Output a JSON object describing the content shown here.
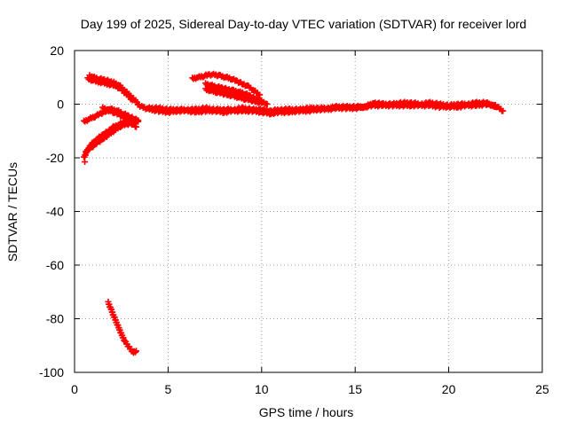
{
  "chart_data": {
    "type": "scatter",
    "title": "Day 199 of 2025, Sidereal Day-to-day VTEC variation (SDTVAR) for receiver lord",
    "xlabel": "GPS time / hours",
    "ylabel": "SDTVAR / TECUs",
    "xlim": [
      0,
      25
    ],
    "ylim": [
      -100,
      20
    ],
    "xticks": [
      0,
      5,
      10,
      15,
      20,
      25
    ],
    "yticks": [
      -100,
      -80,
      -60,
      -40,
      -20,
      0,
      20
    ],
    "xtick_labels": [
      "0",
      "5",
      "10",
      "15",
      "20",
      "25"
    ],
    "ytick_labels": [
      "-100",
      "-80",
      "-60",
      "-40",
      "-20",
      "0",
      "20"
    ],
    "grid": true,
    "marker": "plus",
    "color": "#ff0000",
    "series": [
      {
        "name": "trace-upper-left",
        "x": [
          0.8,
          1.0,
          1.3,
          1.6,
          1.9,
          2.1,
          2.4,
          2.7,
          3.0,
          3.3,
          3.5
        ],
        "y": [
          10.5,
          10.0,
          9.5,
          9.0,
          8.5,
          8.0,
          7.0,
          5.0,
          3.0,
          1.0,
          -1.0
        ]
      },
      {
        "name": "trace-upper-left-b",
        "x": [
          0.7,
          1.0,
          1.4,
          1.8,
          2.2,
          2.5,
          2.8,
          3.1
        ],
        "y": [
          9.5,
          8.8,
          8.2,
          7.5,
          6.8,
          5.5,
          3.5,
          1.5
        ]
      },
      {
        "name": "trace-left-cluster-a",
        "x": [
          0.5,
          0.8,
          1.1,
          1.4,
          1.7,
          2.0,
          2.3,
          2.6,
          2.9,
          3.2,
          3.4
        ],
        "y": [
          -6.5,
          -5.5,
          -4.5,
          -3.5,
          -2.5,
          -2.0,
          -2.5,
          -3.5,
          -4.5,
          -5.5,
          -6.0
        ]
      },
      {
        "name": "trace-left-cluster-b",
        "x": [
          0.6,
          0.9,
          1.2,
          1.5,
          1.8,
          2.1,
          2.4,
          2.7,
          3.0,
          3.3
        ],
        "y": [
          -18.0,
          -15.0,
          -13.0,
          -11.5,
          -10.0,
          -8.5,
          -7.5,
          -6.5,
          -7.0,
          -8.5
        ]
      },
      {
        "name": "trace-left-cluster-c",
        "x": [
          0.5,
          0.7,
          1.0,
          1.3,
          1.6,
          1.9,
          2.2,
          2.5,
          2.8,
          3.1,
          3.4
        ],
        "y": [
          -20.0,
          -17.0,
          -15.5,
          -14.0,
          -12.5,
          -11.0,
          -9.5,
          -8.0,
          -7.5,
          -7.0,
          -6.5
        ]
      },
      {
        "name": "trace-left-cluster-d",
        "x": [
          1.5,
          1.8,
          2.1,
          2.4,
          2.7,
          3.0,
          3.3
        ],
        "y": [
          -1.5,
          -2.0,
          -3.0,
          -4.0,
          -5.0,
          -6.0,
          -5.5
        ]
      },
      {
        "name": "point-isolated",
        "x": [
          0.55
        ],
        "y": [
          -21.5
        ]
      },
      {
        "name": "trace-mid-upper",
        "x": [
          6.3,
          6.6,
          6.9,
          7.2,
          7.5,
          7.8,
          8.1,
          8.4,
          8.7,
          9.0,
          9.3,
          9.6,
          9.9
        ],
        "y": [
          9.5,
          10.0,
          10.5,
          11.0,
          11.0,
          10.5,
          10.0,
          9.5,
          8.5,
          7.5,
          6.5,
          5.0,
          3.5
        ]
      },
      {
        "name": "trace-mid-upper-b",
        "x": [
          7.0,
          7.3,
          7.6,
          7.9,
          8.2,
          8.5,
          8.8,
          9.1,
          9.4,
          9.7,
          10.0,
          10.3
        ],
        "y": [
          7.5,
          7.0,
          6.5,
          6.0,
          5.5,
          5.0,
          4.5,
          4.0,
          3.0,
          2.0,
          1.0,
          0.0
        ]
      },
      {
        "name": "trace-mid-upper-c",
        "x": [
          7.0,
          7.3,
          7.6,
          7.9,
          8.2,
          8.5,
          8.8,
          9.1,
          9.4,
          9.7,
          10.0
        ],
        "y": [
          5.5,
          5.0,
          4.5,
          4.0,
          3.5,
          3.0,
          2.5,
          2.0,
          1.5,
          1.0,
          0.5
        ]
      },
      {
        "name": "trace-baseline",
        "x": [
          3.6,
          4.0,
          4.5,
          5.0,
          5.5,
          6.0,
          6.5,
          7.0,
          7.5,
          8.0,
          8.5,
          9.0,
          9.5,
          10.0,
          10.5,
          11.0,
          11.5,
          12.0,
          12.5,
          13.0,
          13.5,
          14.0,
          14.5,
          15.0,
          15.5,
          16.0,
          16.5,
          17.0,
          17.5,
          18.0,
          18.5,
          19.0,
          19.5,
          20.0,
          20.5,
          21.0,
          21.5,
          22.0,
          22.5,
          22.9
        ],
        "y": [
          -1.0,
          -2.0,
          -2.5,
          -3.0,
          -2.5,
          -2.5,
          -3.0,
          -2.5,
          -2.5,
          -3.0,
          -2.5,
          -2.5,
          -2.5,
          -3.0,
          -3.5,
          -3.0,
          -3.0,
          -2.5,
          -2.5,
          -2.0,
          -2.0,
          -1.5,
          -1.5,
          -1.5,
          -1.0,
          -0.5,
          -0.5,
          -0.5,
          -0.5,
          -0.5,
          -0.5,
          -0.5,
          -1.0,
          -1.0,
          -1.0,
          -0.5,
          -0.5,
          0.0,
          -0.5,
          -2.5
        ]
      },
      {
        "name": "trace-baseline-b",
        "x": [
          4.0,
          4.5,
          5.0,
          5.5,
          6.0,
          6.5,
          7.0,
          7.5,
          8.0,
          8.5,
          9.0,
          9.5,
          10.0,
          10.5,
          11.0,
          11.5,
          12.0,
          12.5,
          13.0,
          13.5,
          14.0,
          14.5,
          15.0,
          15.5,
          16.0,
          16.5,
          17.0,
          17.5,
          18.0,
          18.5,
          19.0,
          19.5,
          20.0,
          20.5,
          21.0,
          21.5,
          22.0,
          22.5
        ],
        "y": [
          -1.5,
          -1.5,
          -2.0,
          -2.0,
          -2.0,
          -2.0,
          -1.5,
          -2.0,
          -2.0,
          -2.0,
          -1.5,
          -2.0,
          -2.0,
          -2.5,
          -2.0,
          -2.0,
          -2.0,
          -1.5,
          -1.5,
          -1.5,
          -1.0,
          -1.0,
          -1.0,
          -1.0,
          0.5,
          0.0,
          0.0,
          0.5,
          0.5,
          0.0,
          0.5,
          0.0,
          -0.5,
          0.0,
          0.0,
          0.5,
          0.5,
          -1.0
        ]
      },
      {
        "name": "trace-low",
        "x": [
          1.8,
          1.95,
          2.1,
          2.25,
          2.4,
          2.55,
          2.7,
          2.85,
          3.0,
          3.15,
          3.3
        ],
        "y": [
          -74.0,
          -76.5,
          -79.0,
          -81.5,
          -84.0,
          -86.5,
          -88.5,
          -90.0,
          -91.5,
          -92.5,
          -92.0
        ]
      },
      {
        "name": "point-3.6-0",
        "x": [
          3.7
        ],
        "y": [
          -1.0
        ]
      }
    ]
  }
}
